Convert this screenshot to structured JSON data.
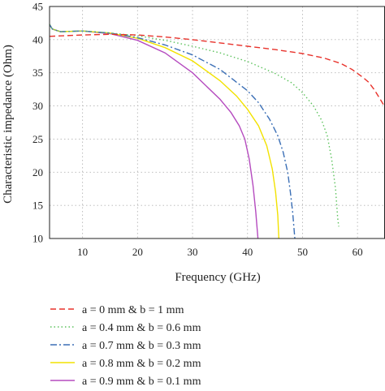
{
  "chart_data": {
    "type": "line",
    "xlabel": "Frequency (GHz)",
    "ylabel": "Characteristic impedance (Ohm)",
    "xlim": [
      4,
      65
    ],
    "ylim": [
      10,
      45
    ],
    "xticks": [
      10,
      20,
      30,
      40,
      50,
      60
    ],
    "yticks": [
      10,
      15,
      20,
      25,
      30,
      35,
      40,
      45
    ],
    "grid": true,
    "legend_position": "below",
    "series": [
      {
        "name": "a = 0 mm & b = 1 mm",
        "color": "#e8322b",
        "dash": "dashed",
        "points": [
          [
            4,
            40.5
          ],
          [
            10,
            40.7
          ],
          [
            15,
            40.8
          ],
          [
            20,
            40.7
          ],
          [
            25,
            40.4
          ],
          [
            30,
            40.0
          ],
          [
            35,
            39.5
          ],
          [
            40,
            39.0
          ],
          [
            45,
            38.5
          ],
          [
            50,
            37.9
          ],
          [
            54,
            37.2
          ],
          [
            57,
            36.4
          ],
          [
            59,
            35.5
          ],
          [
            61,
            34.3
          ],
          [
            62,
            33.6
          ],
          [
            63,
            32.5
          ],
          [
            64,
            31.2
          ],
          [
            65,
            29.8
          ]
        ]
      },
      {
        "name": "a = 0.4 mm & b = 0.6 mm",
        "color": "#5cc25c",
        "dash": "dotted",
        "points": [
          [
            4,
            42.3
          ],
          [
            4.5,
            41.6
          ],
          [
            6,
            41.2
          ],
          [
            10,
            41.3
          ],
          [
            15,
            41.0
          ],
          [
            20,
            40.6
          ],
          [
            25,
            39.9
          ],
          [
            30,
            39.0
          ],
          [
            35,
            38.0
          ],
          [
            40,
            36.7
          ],
          [
            45,
            34.9
          ],
          [
            48,
            33.5
          ],
          [
            50,
            32.0
          ],
          [
            52,
            30.0
          ],
          [
            53.5,
            27.8
          ],
          [
            54.5,
            25.5
          ],
          [
            55.3,
            22.0
          ],
          [
            56,
            17.5
          ],
          [
            56.4,
            13.0
          ],
          [
            56.6,
            11.8
          ]
        ]
      },
      {
        "name": "a = 0.7 mm & b = 0.3 mm",
        "color": "#3b6fb6",
        "dash": "dashdot",
        "points": [
          [
            4,
            42.3
          ],
          [
            4.5,
            41.6
          ],
          [
            6,
            41.2
          ],
          [
            10,
            41.3
          ],
          [
            15,
            41.0
          ],
          [
            20,
            40.3
          ],
          [
            25,
            39.2
          ],
          [
            30,
            37.7
          ],
          [
            35,
            35.5
          ],
          [
            40,
            32.3
          ],
          [
            42,
            30.5
          ],
          [
            44,
            28.0
          ],
          [
            45.5,
            25.5
          ],
          [
            46.5,
            23.0
          ],
          [
            47.3,
            20.0
          ],
          [
            47.8,
            17.0
          ],
          [
            48.2,
            14.0
          ],
          [
            48.5,
            11.0
          ],
          [
            48.6,
            10.0
          ]
        ]
      },
      {
        "name": "a = 0.8 mm & b = 0.2 mm",
        "color": "#f2e200",
        "dash": "solid",
        "points": [
          [
            4,
            42.3
          ],
          [
            4.5,
            41.6
          ],
          [
            6,
            41.2
          ],
          [
            10,
            41.3
          ],
          [
            15,
            41.0
          ],
          [
            20,
            40.2
          ],
          [
            25,
            38.8
          ],
          [
            30,
            36.8
          ],
          [
            35,
            33.8
          ],
          [
            38,
            31.5
          ],
          [
            40,
            29.5
          ],
          [
            42,
            27.0
          ],
          [
            43.5,
            24.0
          ],
          [
            44.5,
            20.5
          ],
          [
            45.1,
            17.0
          ],
          [
            45.5,
            13.5
          ],
          [
            45.7,
            10.0
          ]
        ]
      },
      {
        "name": "a = 0.9 mm & b = 0.1 mm",
        "color": "#b54bbf",
        "dash": "solid",
        "points": [
          [
            4,
            42.3
          ],
          [
            4.5,
            41.6
          ],
          [
            6,
            41.2
          ],
          [
            10,
            41.3
          ],
          [
            15,
            40.9
          ],
          [
            20,
            39.9
          ],
          [
            25,
            38.0
          ],
          [
            30,
            35.0
          ],
          [
            35,
            31.0
          ],
          [
            37,
            29.0
          ],
          [
            38.5,
            27.0
          ],
          [
            39.5,
            25.0
          ],
          [
            40.3,
            22.0
          ],
          [
            41,
            18.0
          ],
          [
            41.5,
            14.0
          ],
          [
            41.8,
            11.0
          ],
          [
            41.9,
            10.0
          ]
        ]
      }
    ]
  }
}
